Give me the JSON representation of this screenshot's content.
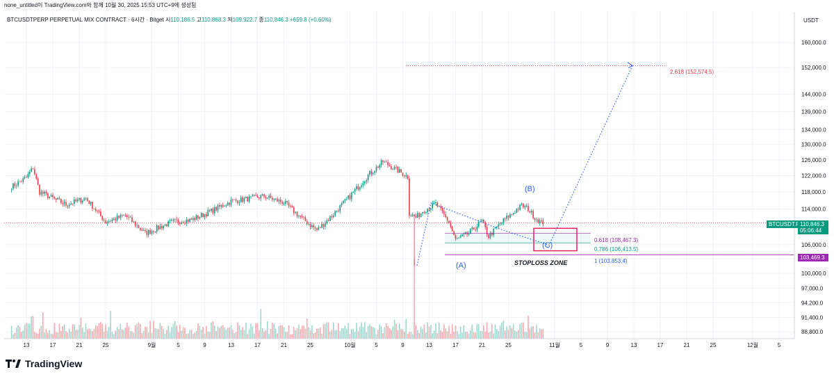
{
  "caption": "none_untitled이 TradingView.com와 함께 10월 30, 2025 15:53 UTC+9에 생성됨",
  "legend": {
    "symbol": "BTCUSDTPERP PERPETUAL MIX CONTRACT · 6시간 · Bitget",
    "o_label": "시",
    "o_value": "110,186.5",
    "h_label": "고",
    "h_value": "110,868.3",
    "l_label": "저",
    "l_value": "109,922.7",
    "c_label": "종",
    "c_value": "110,846.3",
    "change": "+659.8 (+0.60%)"
  },
  "brand": "TradingView",
  "colors": {
    "up": "#089981",
    "down": "#f23645",
    "vol_up": "#9fd7cf",
    "vol_down": "#f7a9ad",
    "fib": "#2962ff",
    "box": "#e91e63",
    "purple": "#9c27b0",
    "target": "#f23645"
  },
  "chart_data": {
    "type": "candlestick",
    "timeframe": "6시간",
    "currency": "USDT",
    "y_scale": "log",
    "ylim": [
      87500,
      168000
    ],
    "y_ticks": [
      88800,
      91400,
      94200,
      97000,
      100000,
      103000,
      106000,
      110000,
      114000,
      118000,
      122000,
      126000,
      130000,
      134000,
      139000,
      144000,
      152000,
      160000
    ],
    "y_tick_labels": [
      "88,800.0",
      "91,400.0",
      "94,200.0",
      "97,000.0",
      "100,000.0",
      "103,000.0",
      "106,000.0",
      "110,000.0",
      "114,000.0",
      "118,000.0",
      "122,000.0",
      "126,000.0",
      "130,000.0",
      "134,000.0",
      "139,000.0",
      "144,000.0",
      "152,000.0",
      "160,000.0"
    ],
    "x_tick_labels": [
      "13",
      "17",
      "21",
      "25",
      "9월",
      "5",
      "9",
      "13",
      "17",
      "21",
      "25",
      "10월",
      "5",
      "9",
      "13",
      "17",
      "21",
      "25",
      "11월",
      "5",
      "9",
      "13",
      "17",
      "21",
      "25",
      "12월",
      "5"
    ],
    "price_anchors": [
      {
        "date": "08-11",
        "price": 119500
      },
      {
        "date": "08-13",
        "price": 121500
      },
      {
        "date": "08-14",
        "price": 124000
      },
      {
        "date": "08-15",
        "price": 118000
      },
      {
        "date": "08-19",
        "price": 115000
      },
      {
        "date": "08-22",
        "price": 116500
      },
      {
        "date": "08-25",
        "price": 111000
      },
      {
        "date": "08-28",
        "price": 112500
      },
      {
        "date": "08-31",
        "price": 108500
      },
      {
        "date": "09-04",
        "price": 111000
      },
      {
        "date": "09-07",
        "price": 111500
      },
      {
        "date": "09-10",
        "price": 113500
      },
      {
        "date": "09-13",
        "price": 115800
      },
      {
        "date": "09-18",
        "price": 117000
      },
      {
        "date": "09-21",
        "price": 115500
      },
      {
        "date": "09-24",
        "price": 111500
      },
      {
        "date": "09-26",
        "price": 109200
      },
      {
        "date": "09-28",
        "price": 112000
      },
      {
        "date": "10-01",
        "price": 117000
      },
      {
        "date": "10-04",
        "price": 122500
      },
      {
        "date": "10-06",
        "price": 125500
      },
      {
        "date": "10-08",
        "price": 123500
      },
      {
        "date": "10-10",
        "price": 121500
      },
      {
        "date": "10-10",
        "price": 113000
      },
      {
        "date": "10-11",
        "price": 112000
      },
      {
        "date": "10-12",
        "price": 113500
      },
      {
        "date": "10-14",
        "price": 115200
      },
      {
        "date": "10-16",
        "price": 111000
      },
      {
        "date": "10-17",
        "price": 107000
      },
      {
        "date": "10-19",
        "price": 108500
      },
      {
        "date": "10-21",
        "price": 111200
      },
      {
        "date": "10-22",
        "price": 107800
      },
      {
        "date": "10-24",
        "price": 111000
      },
      {
        "date": "10-27",
        "price": 114800
      },
      {
        "date": "10-28",
        "price": 114000
      },
      {
        "date": "10-29",
        "price": 112000
      },
      {
        "date": "10-30",
        "price": 110846
      }
    ],
    "volume": {
      "description": "6-hour volume histogram (no axis values printed)"
    },
    "fib_levels": [
      {
        "ratio": "0.618",
        "price": 108467.3,
        "label": "0.618 (108,467.3)"
      },
      {
        "ratio": "0.786",
        "price": 106413.5,
        "label": "0.786 (106,413.5)"
      },
      {
        "ratio": "1",
        "price": 103853.4,
        "label": "1 (103,853.4)"
      },
      {
        "ratio": "2.618",
        "price": 152574.5,
        "label": "2.618 (152,574.5)"
      }
    ],
    "wave_labels": [
      {
        "text": "(A)",
        "price": 101600
      },
      {
        "text": "(B)",
        "price": 119200
      },
      {
        "text": "(C)",
        "price": 106100
      }
    ],
    "annotations": {
      "stoploss_zone": "STOPLOSS ZONE"
    },
    "current_price": {
      "symbol": "BTCUSDT.P",
      "value": "110,846.3",
      "countdown": "05:06:44"
    },
    "level_marker": "103,469.3",
    "axis_currency_label": "USDT"
  }
}
